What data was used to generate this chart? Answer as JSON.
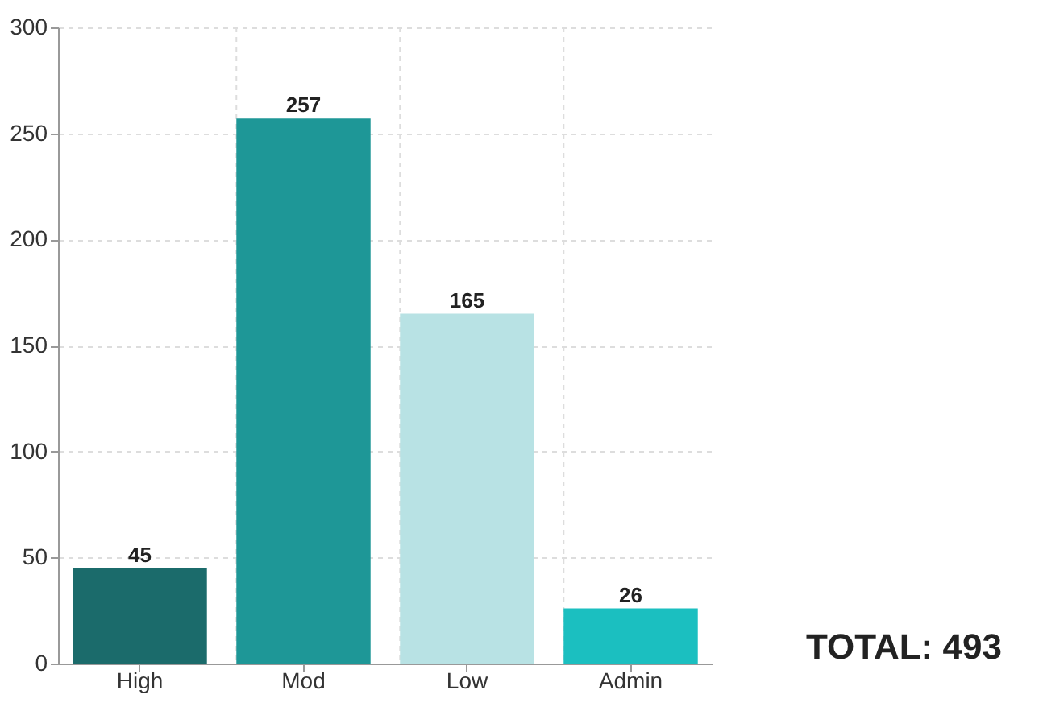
{
  "chart_data": {
    "type": "bar",
    "categories": [
      "High",
      "Mod",
      "Low",
      "Admin"
    ],
    "values": [
      45,
      257,
      165,
      26
    ],
    "colors": [
      "#1b6b6b",
      "#1e9797",
      "#b8e2e4",
      "#1bbfc0"
    ],
    "ylim": [
      0,
      300
    ],
    "yticks": [
      0,
      50,
      100,
      150,
      200,
      250,
      300
    ],
    "grid": true,
    "data_labels": true,
    "annotations": [
      "TOTAL: 493"
    ]
  }
}
